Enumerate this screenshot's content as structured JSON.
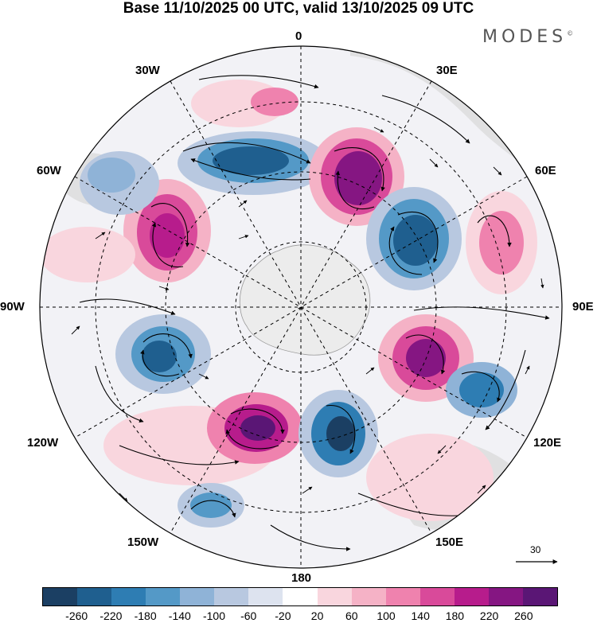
{
  "header": {
    "title": "Base 11/10/2025 00 UTC, valid 13/10/2025 09 UTC",
    "brand": "MODES",
    "brand_mark": "©"
  },
  "map": {
    "projection": "south-polar-stereographic",
    "longitude_labels": {
      "top": "0",
      "upper_right": "30E",
      "right_upper": "60E",
      "right": "90E",
      "right_lower": "120E",
      "lower_right": "150E",
      "bottom": "180",
      "lower_left": "150W",
      "left_lower": "120W",
      "left": "90W",
      "left_upper": "60W",
      "upper_left": "30W"
    },
    "vector_scale_label": "30"
  },
  "colorbar": {
    "ticks": [
      "-260",
      "-220",
      "-180",
      "-140",
      "-100",
      "-60",
      "-20",
      "20",
      "60",
      "100",
      "140",
      "180",
      "220",
      "260"
    ],
    "colors": [
      "#1b3f63",
      "#1f5f8f",
      "#2e7db3",
      "#5499c7",
      "#8fb3d7",
      "#b8c8e0",
      "#dde3ef",
      "#ffffff",
      "#f9d6de",
      "#f5b2c6",
      "#ef82ae",
      "#d94a9a",
      "#b71c8c",
      "#851682",
      "#5a1675"
    ]
  }
}
